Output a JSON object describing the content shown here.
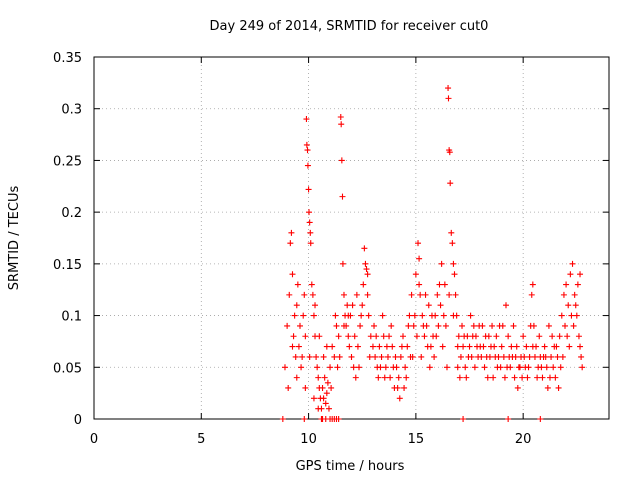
{
  "chart_data": {
    "type": "scatter",
    "title": "Day 249 of 2014, SRMTID for receiver cut0",
    "xlabel": "GPS time / hours",
    "ylabel": "SRMTID / TECUs",
    "xlim": [
      0,
      24
    ],
    "ylim": [
      0,
      0.35
    ],
    "x_ticks": [
      0,
      5,
      10,
      15,
      20
    ],
    "y_ticks": [
      0,
      0.05,
      0.1,
      0.15,
      0.2,
      0.25,
      0.3,
      0.35
    ],
    "x_tick_labels": [
      "0",
      "5",
      "10",
      "15",
      "20"
    ],
    "y_tick_labels": [
      "0",
      "0.05",
      "0.1",
      "0.15",
      "0.2",
      "0.25",
      "0.3",
      "0.35"
    ],
    "grid": true,
    "marker": "+",
    "color": "#ff0000",
    "series": [
      {
        "name": "SRMTID",
        "points": [
          [
            8.9,
            0.05
          ],
          [
            9.0,
            0.09
          ],
          [
            9.1,
            0.12
          ],
          [
            9.15,
            0.17
          ],
          [
            9.2,
            0.18
          ],
          [
            9.25,
            0.14
          ],
          [
            9.3,
            0.08
          ],
          [
            9.35,
            0.1
          ],
          [
            9.4,
            0.06
          ],
          [
            9.45,
            0.11
          ],
          [
            9.5,
            0.13
          ],
          [
            9.55,
            0.07
          ],
          [
            9.6,
            0.09
          ],
          [
            9.7,
            0.06
          ],
          [
            9.75,
            0.1
          ],
          [
            9.8,
            0.12
          ],
          [
            9.85,
            0.08
          ],
          [
            9.9,
            0.29
          ],
          [
            9.92,
            0.265
          ],
          [
            9.95,
            0.26
          ],
          [
            9.97,
            0.245
          ],
          [
            10.0,
            0.222
          ],
          [
            10.02,
            0.2
          ],
          [
            10.05,
            0.19
          ],
          [
            10.08,
            0.18
          ],
          [
            10.1,
            0.17
          ],
          [
            10.15,
            0.13
          ],
          [
            10.2,
            0.12
          ],
          [
            10.25,
            0.1
          ],
          [
            10.3,
            0.08
          ],
          [
            10.35,
            0.06
          ],
          [
            10.4,
            0.05
          ],
          [
            10.45,
            0.04
          ],
          [
            10.5,
            0.03
          ],
          [
            10.55,
            0.02
          ],
          [
            10.6,
            0.01
          ],
          [
            10.65,
            0.03
          ],
          [
            10.7,
            0.02
          ],
          [
            10.75,
            0.04
          ],
          [
            10.8,
            0.015
          ],
          [
            10.85,
            0.025
          ],
          [
            10.9,
            0.035
          ],
          [
            10.95,
            0.01
          ],
          [
            11.0,
            0.05
          ],
          [
            11.1,
            0.07
          ],
          [
            11.2,
            0.06
          ],
          [
            11.3,
            0.09
          ],
          [
            11.4,
            0.08
          ],
          [
            11.5,
            0.292
          ],
          [
            11.52,
            0.285
          ],
          [
            11.55,
            0.25
          ],
          [
            11.58,
            0.215
          ],
          [
            11.6,
            0.15
          ],
          [
            11.65,
            0.12
          ],
          [
            11.7,
            0.1
          ],
          [
            11.75,
            0.09
          ],
          [
            11.8,
            0.11
          ],
          [
            11.85,
            0.08
          ],
          [
            11.9,
            0.07
          ],
          [
            12.0,
            0.06
          ],
          [
            12.1,
            0.05
          ],
          [
            12.2,
            0.04
          ],
          [
            12.3,
            0.07
          ],
          [
            12.4,
            0.09
          ],
          [
            12.5,
            0.11
          ],
          [
            12.6,
            0.165
          ],
          [
            12.65,
            0.15
          ],
          [
            12.7,
            0.145
          ],
          [
            12.75,
            0.12
          ],
          [
            12.8,
            0.1
          ],
          [
            12.9,
            0.08
          ],
          [
            13.0,
            0.07
          ],
          [
            13.1,
            0.06
          ],
          [
            13.2,
            0.05
          ],
          [
            13.3,
            0.07
          ],
          [
            13.4,
            0.06
          ],
          [
            13.5,
            0.08
          ],
          [
            13.6,
            0.05
          ],
          [
            13.7,
            0.06
          ],
          [
            13.8,
            0.04
          ],
          [
            13.9,
            0.07
          ],
          [
            14.0,
            0.03
          ],
          [
            14.1,
            0.05
          ],
          [
            14.2,
            0.04
          ],
          [
            14.3,
            0.06
          ],
          [
            14.4,
            0.08
          ],
          [
            14.5,
            0.05
          ],
          [
            14.6,
            0.07
          ],
          [
            14.7,
            0.1
          ],
          [
            14.8,
            0.12
          ],
          [
            14.9,
            0.09
          ],
          [
            15.0,
            0.14
          ],
          [
            15.1,
            0.17
          ],
          [
            15.15,
            0.155
          ],
          [
            15.2,
            0.12
          ],
          [
            15.3,
            0.1
          ],
          [
            15.4,
            0.08
          ],
          [
            15.5,
            0.09
          ],
          [
            15.6,
            0.11
          ],
          [
            15.7,
            0.07
          ],
          [
            15.8,
            0.08
          ],
          [
            15.9,
            0.1
          ],
          [
            16.0,
            0.12
          ],
          [
            16.1,
            0.13
          ],
          [
            16.2,
            0.15
          ],
          [
            16.3,
            0.1
          ],
          [
            16.4,
            0.09
          ],
          [
            16.5,
            0.32
          ],
          [
            16.52,
            0.31
          ],
          [
            16.55,
            0.26
          ],
          [
            16.58,
            0.258
          ],
          [
            16.6,
            0.228
          ],
          [
            16.65,
            0.18
          ],
          [
            16.7,
            0.17
          ],
          [
            16.75,
            0.15
          ],
          [
            16.8,
            0.14
          ],
          [
            16.85,
            0.12
          ],
          [
            16.9,
            0.1
          ],
          [
            17.0,
            0.08
          ],
          [
            17.1,
            0.06
          ],
          [
            17.2,
            0.07
          ],
          [
            17.3,
            0.05
          ],
          [
            17.4,
            0.08
          ],
          [
            17.5,
            0.07
          ],
          [
            17.6,
            0.06
          ],
          [
            17.7,
            0.09
          ],
          [
            17.8,
            0.08
          ],
          [
            17.9,
            0.06
          ],
          [
            18.0,
            0.07
          ],
          [
            18.1,
            0.09
          ],
          [
            18.2,
            0.05
          ],
          [
            18.3,
            0.06
          ],
          [
            18.4,
            0.08
          ],
          [
            18.5,
            0.07
          ],
          [
            18.6,
            0.04
          ],
          [
            18.7,
            0.06
          ],
          [
            18.8,
            0.05
          ],
          [
            18.9,
            0.09
          ],
          [
            19.0,
            0.07
          ],
          [
            19.1,
            0.06
          ],
          [
            19.2,
            0.11
          ],
          [
            19.3,
            0.08
          ],
          [
            19.4,
            0.05
          ],
          [
            19.5,
            0.06
          ],
          [
            19.6,
            0.04
          ],
          [
            19.7,
            0.07
          ],
          [
            19.8,
            0.05
          ],
          [
            19.9,
            0.06
          ],
          [
            20.0,
            0.08
          ],
          [
            20.1,
            0.05
          ],
          [
            20.2,
            0.04
          ],
          [
            20.3,
            0.06
          ],
          [
            20.4,
            0.12
          ],
          [
            20.45,
            0.13
          ],
          [
            20.5,
            0.09
          ],
          [
            20.6,
            0.07
          ],
          [
            20.7,
            0.05
          ],
          [
            20.8,
            0.06
          ],
          [
            20.9,
            0.04
          ],
          [
            21.0,
            0.07
          ],
          [
            21.1,
            0.05
          ],
          [
            21.2,
            0.09
          ],
          [
            21.3,
            0.06
          ],
          [
            21.4,
            0.05
          ],
          [
            21.5,
            0.04
          ],
          [
            21.6,
            0.06
          ],
          [
            21.7,
            0.08
          ],
          [
            21.8,
            0.1
          ],
          [
            21.9,
            0.12
          ],
          [
            22.0,
            0.13
          ],
          [
            22.1,
            0.11
          ],
          [
            22.2,
            0.14
          ],
          [
            22.3,
            0.15
          ],
          [
            22.4,
            0.12
          ],
          [
            22.5,
            0.1
          ],
          [
            22.6,
            0.08
          ],
          [
            22.7,
            0.06
          ],
          [
            22.75,
            0.05
          ],
          [
            10.3,
            0.11
          ],
          [
            10.5,
            0.08
          ],
          [
            10.7,
            0.06
          ],
          [
            10.85,
            0.07
          ],
          [
            11.05,
            0.03
          ],
          [
            11.25,
            0.1
          ],
          [
            11.45,
            0.06
          ],
          [
            11.95,
            0.1
          ],
          [
            12.15,
            0.08
          ],
          [
            12.35,
            0.05
          ],
          [
            12.55,
            0.13
          ],
          [
            12.85,
            0.06
          ],
          [
            13.05,
            0.09
          ],
          [
            13.25,
            0.04
          ],
          [
            13.45,
            0.1
          ],
          [
            13.65,
            0.07
          ],
          [
            13.85,
            0.09
          ],
          [
            14.05,
            0.06
          ],
          [
            14.25,
            0.02
          ],
          [
            14.45,
            0.03
          ],
          [
            14.65,
            0.09
          ],
          [
            14.85,
            0.06
          ],
          [
            15.05,
            0.08
          ],
          [
            15.25,
            0.06
          ],
          [
            15.45,
            0.12
          ],
          [
            15.65,
            0.05
          ],
          [
            15.85,
            0.06
          ],
          [
            16.05,
            0.09
          ],
          [
            16.25,
            0.07
          ],
          [
            16.45,
            0.05
          ],
          [
            16.95,
            0.05
          ],
          [
            17.15,
            0.09
          ],
          [
            17.35,
            0.04
          ],
          [
            17.55,
            0.1
          ],
          [
            17.75,
            0.05
          ],
          [
            17.95,
            0.09
          ],
          [
            18.15,
            0.07
          ],
          [
            18.35,
            0.04
          ],
          [
            18.55,
            0.09
          ],
          [
            18.75,
            0.08
          ],
          [
            18.95,
            0.05
          ],
          [
            19.15,
            0.04
          ],
          [
            19.35,
            0.06
          ],
          [
            19.55,
            0.09
          ],
          [
            19.75,
            0.03
          ],
          [
            19.95,
            0.04
          ],
          [
            20.15,
            0.07
          ],
          [
            20.35,
            0.09
          ],
          [
            20.55,
            0.06
          ],
          [
            20.75,
            0.08
          ],
          [
            20.95,
            0.06
          ],
          [
            21.15,
            0.03
          ],
          [
            21.35,
            0.08
          ],
          [
            21.55,
            0.07
          ],
          [
            21.75,
            0.05
          ],
          [
            21.95,
            0.09
          ],
          [
            22.15,
            0.07
          ],
          [
            22.35,
            0.09
          ],
          [
            22.55,
            0.13
          ],
          [
            22.65,
            0.14
          ],
          [
            9.05,
            0.03
          ],
          [
            9.25,
            0.07
          ],
          [
            9.45,
            0.04
          ],
          [
            9.65,
            0.05
          ],
          [
            9.85,
            0.03
          ],
          [
            10.05,
            0.06
          ],
          [
            10.25,
            0.02
          ],
          [
            10.45,
            0.01
          ],
          [
            10.65,
            0.0
          ],
          [
            11.35,
            0.05
          ],
          [
            11.65,
            0.09
          ],
          [
            11.85,
            0.1
          ],
          [
            12.05,
            0.11
          ],
          [
            12.25,
            0.12
          ],
          [
            12.45,
            0.1
          ],
          [
            12.75,
            0.14
          ],
          [
            13.15,
            0.08
          ],
          [
            13.35,
            0.05
          ],
          [
            13.55,
            0.04
          ],
          [
            13.75,
            0.08
          ],
          [
            13.95,
            0.05
          ],
          [
            14.15,
            0.03
          ],
          [
            14.35,
            0.07
          ],
          [
            14.55,
            0.04
          ],
          [
            14.75,
            0.06
          ],
          [
            14.95,
            0.1
          ],
          [
            15.15,
            0.13
          ],
          [
            15.35,
            0.09
          ],
          [
            15.55,
            0.07
          ],
          [
            15.75,
            0.1
          ],
          [
            15.95,
            0.08
          ],
          [
            16.15,
            0.11
          ],
          [
            16.35,
            0.13
          ],
          [
            16.55,
            0.12
          ],
          [
            16.75,
            0.1
          ],
          [
            16.95,
            0.07
          ],
          [
            17.05,
            0.04
          ],
          [
            17.25,
            0.08
          ],
          [
            17.45,
            0.06
          ],
          [
            17.65,
            0.08
          ],
          [
            17.85,
            0.07
          ],
          [
            18.05,
            0.06
          ],
          [
            18.25,
            0.08
          ],
          [
            18.45,
            0.06
          ],
          [
            18.65,
            0.07
          ],
          [
            18.85,
            0.06
          ],
          [
            19.05,
            0.09
          ],
          [
            19.25,
            0.05
          ],
          [
            19.45,
            0.07
          ],
          [
            19.65,
            0.06
          ],
          [
            19.85,
            0.05
          ],
          [
            20.05,
            0.06
          ],
          [
            20.25,
            0.05
          ],
          [
            20.45,
            0.07
          ],
          [
            20.65,
            0.04
          ],
          [
            20.85,
            0.05
          ],
          [
            21.05,
            0.06
          ],
          [
            21.25,
            0.04
          ],
          [
            21.45,
            0.07
          ],
          [
            21.65,
            0.03
          ],
          [
            21.85,
            0.06
          ],
          [
            22.05,
            0.08
          ],
          [
            22.25,
            0.1
          ],
          [
            22.45,
            0.11
          ],
          [
            22.65,
            0.07
          ]
        ]
      }
    ],
    "zero_points": [
      8.8,
      9.8,
      10.6,
      10.8,
      11.0,
      11.1,
      11.2,
      11.3,
      11.4,
      17.2,
      19.3,
      20.8
    ]
  }
}
